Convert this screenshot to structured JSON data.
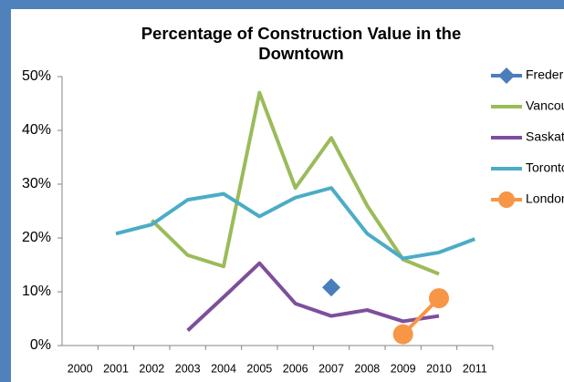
{
  "chart_data": {
    "type": "line",
    "title": "Percentage of Construction Value in the Downtown",
    "categories": [
      "2000",
      "2001",
      "2002",
      "2003",
      "2004",
      "2005",
      "2006",
      "2007",
      "2008",
      "2009",
      "2010",
      "2011"
    ],
    "ylim": [
      0,
      50
    ],
    "yticks": [
      {
        "value": 0,
        "label": "0%"
      },
      {
        "value": 10,
        "label": "10%"
      },
      {
        "value": 20,
        "label": "20%"
      },
      {
        "value": 30,
        "label": "30%"
      },
      {
        "value": 40,
        "label": "40%"
      },
      {
        "value": 50,
        "label": "50%"
      }
    ],
    "legend": "right",
    "series": [
      {
        "name": "Fredericton",
        "color": "#4a7ebb",
        "marker": "diamond",
        "values": [
          null,
          null,
          null,
          null,
          null,
          null,
          null,
          10.8,
          null,
          null,
          null,
          null
        ]
      },
      {
        "name": "Vancouver",
        "color": "#9bbb59",
        "values": [
          null,
          null,
          23.3,
          16.8,
          14.7,
          47,
          29.3,
          38.6,
          26,
          16,
          13.3,
          null
        ]
      },
      {
        "name": "Saskatoon",
        "color": "#7d4f9b",
        "values": [
          null,
          null,
          null,
          2.8,
          9,
          15.3,
          7.8,
          5.5,
          6.6,
          4.5,
          5.5,
          null
        ]
      },
      {
        "name": "Toronto",
        "color": "#4bacc6",
        "values": [
          null,
          20.8,
          22.5,
          27.1,
          28.2,
          24.0,
          27.5,
          29.3,
          20.8,
          16.2,
          17.3,
          19.8
        ]
      },
      {
        "name": "London",
        "color": "#f79646",
        "marker": "circle",
        "values": [
          null,
          null,
          null,
          null,
          null,
          null,
          null,
          null,
          null,
          2.1,
          8.8,
          null
        ]
      }
    ]
  }
}
